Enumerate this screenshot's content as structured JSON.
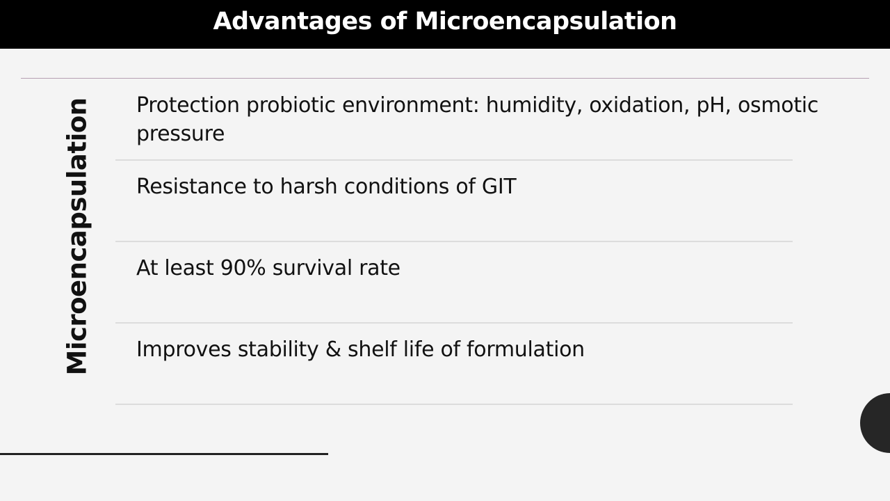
{
  "slide": {
    "title": "Advantages of Microencapsulation",
    "side_label": "Microencapsulation",
    "items": [
      {
        "text": "Protection probiotic environment: humidity, oxidation, pH, osmotic pressure"
      },
      {
        "text": "Resistance to harsh conditions of GIT"
      },
      {
        "text": "At least 90% survival rate"
      },
      {
        "text": "Improves stability & shelf life of formulation"
      }
    ]
  },
  "colors": {
    "title_bar": "#000000",
    "title_text": "#ffffff",
    "background": "#f4f4f4",
    "accent_rule": "#b59fb2",
    "circle": "#262626"
  }
}
